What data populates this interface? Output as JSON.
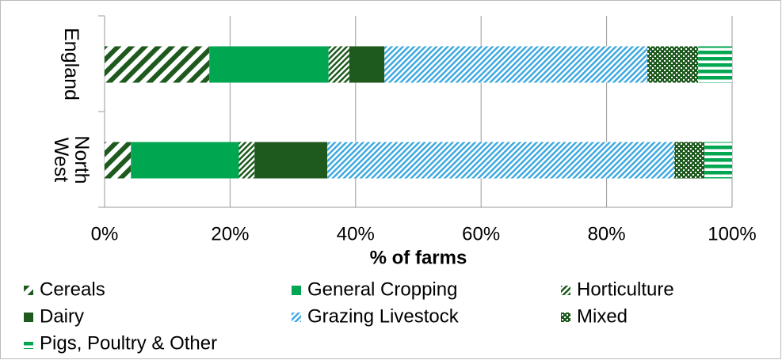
{
  "chart_data": {
    "type": "stacked-bar-horizontal",
    "x_label": "% of farms",
    "categories": [
      "England",
      "North West"
    ],
    "series": [
      {
        "name": "Cereals",
        "color": "#1e5a1e",
        "values": [
          16.7,
          4.2
        ]
      },
      {
        "name": "General Cropping",
        "color": "#00a650",
        "values": [
          19.0,
          17.2
        ]
      },
      {
        "name": "Horticulture",
        "color": "#1e5a1e",
        "values": [
          3.3,
          2.5
        ]
      },
      {
        "name": "Dairy",
        "color": "#1e5a1e",
        "values": [
          5.6,
          11.6
        ]
      },
      {
        "name": "Grazing Livestock",
        "color": "#3fa9e0",
        "values": [
          41.9,
          55.3
        ]
      },
      {
        "name": "Mixed",
        "color": "#1e5a1e",
        "values": [
          8.1,
          4.8
        ]
      },
      {
        "name": "Pigs, Poultry & Other",
        "color": "#00a650",
        "values": [
          5.4,
          4.4
        ]
      }
    ],
    "xlim": [
      0,
      100
    ],
    "xticks": [
      {
        "value": 0,
        "label": "0%"
      },
      {
        "value": 20,
        "label": "20%"
      },
      {
        "value": 40,
        "label": "40%"
      },
      {
        "value": 60,
        "label": "60%"
      },
      {
        "value": 80,
        "label": "80%"
      },
      {
        "value": 100,
        "label": "100%"
      }
    ],
    "grid": true
  }
}
